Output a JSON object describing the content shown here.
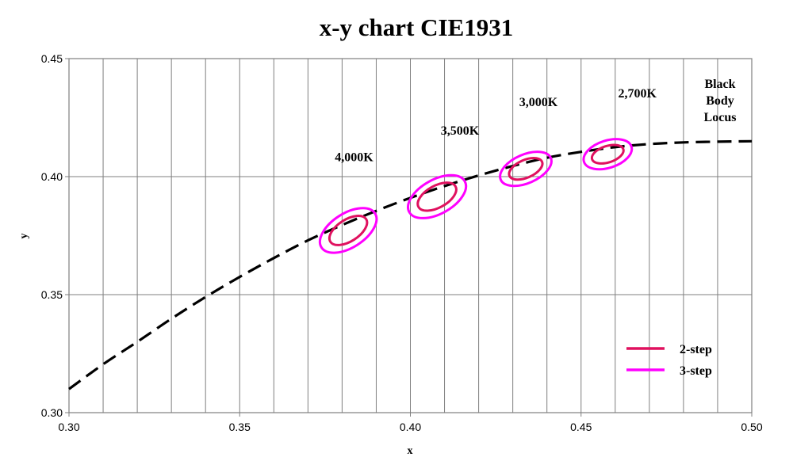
{
  "chart_data": {
    "type": "line",
    "title": "x-y chart  CIE1931",
    "xlabel": "x",
    "ylabel": "y",
    "xlim": [
      0.3,
      0.5
    ],
    "ylim": [
      0.3,
      0.45
    ],
    "x_ticks": [
      "0.30",
      "0.35",
      "0.40",
      "0.45",
      "0.50"
    ],
    "y_ticks": [
      "0.30",
      "0.35",
      "0.40",
      "0.45"
    ],
    "x_ticks_values": [
      0.3,
      0.35,
      0.4,
      0.45,
      0.5
    ],
    "y_ticks_values": [
      0.3,
      0.35,
      0.4,
      0.45
    ],
    "x_minor_grid_step": 0.01,
    "grid": "vertical",
    "legend_position": "bottom-right",
    "locus": {
      "label_lines": [
        "Black",
        "Body",
        "Locus"
      ],
      "color": "#000000",
      "style": "dashed",
      "points": [
        [
          0.3,
          0.31
        ],
        [
          0.31,
          0.3205
        ],
        [
          0.32,
          0.33
        ],
        [
          0.33,
          0.3398
        ],
        [
          0.34,
          0.349
        ],
        [
          0.35,
          0.3575
        ],
        [
          0.36,
          0.3655
        ],
        [
          0.37,
          0.373
        ],
        [
          0.38,
          0.3795
        ],
        [
          0.39,
          0.3855
        ],
        [
          0.4,
          0.391
        ],
        [
          0.41,
          0.396
        ],
        [
          0.42,
          0.4005
        ],
        [
          0.43,
          0.4045
        ],
        [
          0.44,
          0.408
        ],
        [
          0.45,
          0.4105
        ],
        [
          0.46,
          0.4125
        ],
        [
          0.47,
          0.4138
        ],
        [
          0.48,
          0.4145
        ],
        [
          0.49,
          0.4148
        ],
        [
          0.5,
          0.415
        ]
      ]
    },
    "series": [
      {
        "name": "2-step",
        "color": "#e0115f"
      },
      {
        "name": "3-step",
        "color": "#ff00ff"
      }
    ],
    "ellipses": [
      {
        "label": "4,000K",
        "cx": 0.3818,
        "cy": 0.3772,
        "label_x": 0.3835,
        "label_y": 0.4065,
        "steps": {
          "2-step": {
            "a": 0.0062,
            "b": 0.0032
          },
          "3-step": {
            "a": 0.0093,
            "b": 0.005
          }
        }
      },
      {
        "label": "3,500K",
        "cx": 0.4078,
        "cy": 0.3915,
        "label_x": 0.4145,
        "label_y": 0.4178,
        "steps": {
          "2-step": {
            "a": 0.0062,
            "b": 0.0032
          },
          "3-step": {
            "a": 0.0093,
            "b": 0.005
          }
        }
      },
      {
        "label": "3,000K",
        "cx": 0.4338,
        "cy": 0.4033,
        "label_x": 0.4375,
        "label_y": 0.4298,
        "steps": {
          "2-step": {
            "a": 0.0052,
            "b": 0.0026
          },
          "3-step": {
            "a": 0.008,
            "b": 0.0042
          }
        }
      },
      {
        "label": "2,700K",
        "cx": 0.4578,
        "cy": 0.4095,
        "label_x": 0.4665,
        "label_y": 0.4335,
        "steps": {
          "2-step": {
            "a": 0.0048,
            "b": 0.0024
          },
          "3-step": {
            "a": 0.0073,
            "b": 0.004
          }
        }
      }
    ]
  }
}
